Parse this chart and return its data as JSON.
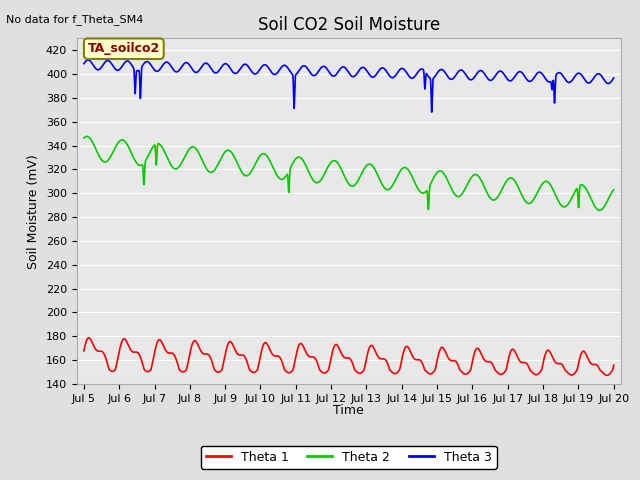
{
  "title": "Soil CO2 Soil Moisture",
  "no_data_label": "No data for f_Theta_SM4",
  "ylabel": "Soil Moisture (mV)",
  "xlabel": "Time",
  "annotation": "TA_soilco2",
  "ylim": [
    140,
    430
  ],
  "yticks": [
    140,
    160,
    180,
    200,
    220,
    240,
    260,
    280,
    300,
    320,
    340,
    360,
    380,
    400,
    420
  ],
  "xtick_labels": [
    "Jul 5",
    "Jul 6",
    "Jul 7",
    "Jul 8",
    "Jul 9",
    "Jul 10",
    "Jul 11",
    "Jul 12",
    "Jul 13",
    "Jul 14",
    "Jul 15",
    "Jul 16",
    "Jul 17",
    "Jul 18",
    "Jul 19",
    "Jul 20"
  ],
  "legend_entries": [
    "Theta 1",
    "Theta 2",
    "Theta 3"
  ],
  "legend_colors": [
    "#ff0000",
    "#00cc00",
    "#0000ff"
  ],
  "bg_color": "#e0e0e0",
  "plot_bg_color": "#e8e8e8",
  "title_fontsize": 12,
  "label_fontsize": 9,
  "tick_fontsize": 8,
  "line_width": 1.2
}
